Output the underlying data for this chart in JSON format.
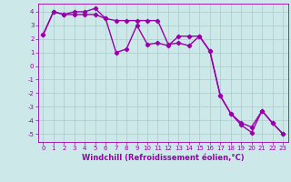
{
  "xlabel": "Windchill (Refroidissement éolien,°C)",
  "xlim": [
    -0.5,
    23.5
  ],
  "ylim": [
    -5.6,
    4.6
  ],
  "yticks": [
    -5,
    -4,
    -3,
    -2,
    -1,
    0,
    1,
    2,
    3,
    4
  ],
  "xticks": [
    0,
    1,
    2,
    3,
    4,
    5,
    6,
    7,
    8,
    9,
    10,
    11,
    12,
    13,
    14,
    15,
    16,
    17,
    18,
    19,
    20,
    21,
    22,
    23
  ],
  "line1_x": [
    0,
    1,
    2,
    3,
    4,
    5,
    6,
    7,
    8,
    9,
    10,
    11,
    12,
    13,
    14,
    15,
    16,
    17,
    18,
    19,
    20,
    21,
    22,
    23
  ],
  "line1_y": [
    2.3,
    4.0,
    3.8,
    4.0,
    4.0,
    4.25,
    3.5,
    3.35,
    3.35,
    3.35,
    3.35,
    3.35,
    1.6,
    1.7,
    1.5,
    2.2,
    1.1,
    -2.2,
    -3.5,
    -4.2,
    -4.5,
    -3.3,
    -4.2,
    -5.0
  ],
  "line2_x": [
    0,
    1,
    2,
    3,
    4,
    5,
    6,
    7,
    8,
    9,
    10,
    11,
    12,
    13,
    14,
    15,
    16,
    17,
    18,
    19,
    20,
    21,
    22,
    23
  ],
  "line2_y": [
    2.3,
    4.0,
    3.8,
    3.8,
    3.8,
    3.8,
    3.5,
    1.0,
    1.25,
    3.0,
    1.6,
    1.7,
    1.5,
    2.2,
    2.2,
    2.2,
    1.1,
    -2.2,
    -3.5,
    -4.35,
    -4.9,
    -3.3,
    -4.2,
    -5.0
  ],
  "line_color": "#9900aa",
  "bg_color": "#cce8e8",
  "grid_color": "#aacccc",
  "marker": "D",
  "marker_size": 2.2,
  "line_width": 1.0,
  "tick_fontsize": 5.0,
  "xlabel_fontsize": 6.0
}
